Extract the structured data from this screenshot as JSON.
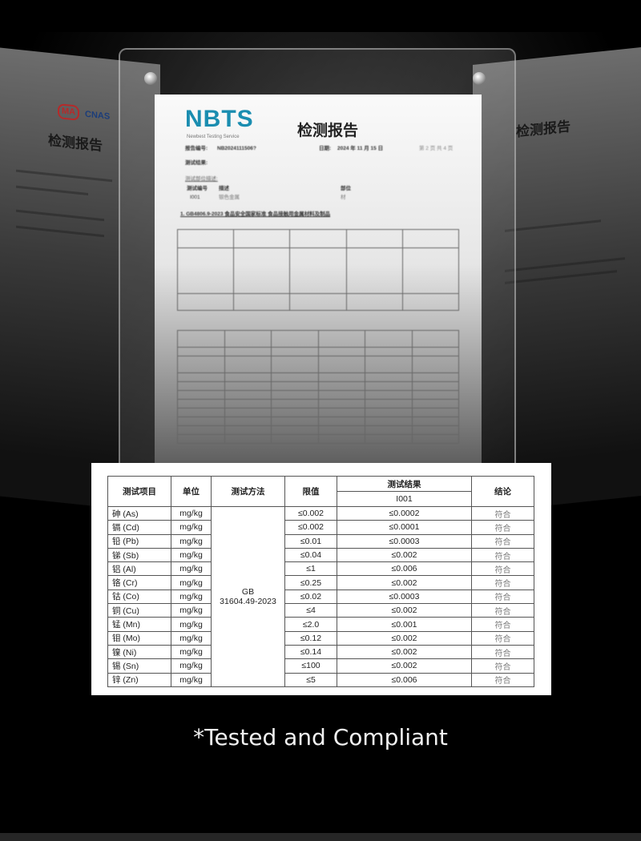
{
  "background_report": {
    "logo": "NBTS",
    "logo_tagline": "Newbest Testing Service",
    "title": "检测报告",
    "report_no_label": "报告编号:",
    "report_no": "NB2024111506?",
    "date_label": "日期:",
    "date": "2024 年 11 月 15 日",
    "page": "第 2 页 共 4 页",
    "results_label": "测试结果:",
    "sample_label": "测试部位描述:",
    "sample_headers": [
      "测试编号",
      "描述",
      "部位"
    ],
    "sample_row": [
      "I001",
      "银色金属",
      "材"
    ],
    "standard": "1. GB4806.9-2023 食品安全国家标准 食品接触用金属材料及制品",
    "side_badges": [
      "MA",
      "CNAS"
    ]
  },
  "results_table": {
    "headers": {
      "item": "测试项目",
      "unit": "单位",
      "method": "测试方法",
      "limit": "限值",
      "result": "测试结果",
      "sample_id": "I001",
      "conclusion": "结论"
    },
    "method": "GB\n31604.49-2023",
    "method_line1": "GB",
    "method_line2": "31604.49-2023",
    "rows": [
      {
        "item": "砷 (As)",
        "unit": "mg/kg",
        "limit": "≤0.002",
        "result": "≤0.0002",
        "conclusion": "符合"
      },
      {
        "item": "镉 (Cd)",
        "unit": "mg/kg",
        "limit": "≤0.002",
        "result": "≤0.0001",
        "conclusion": "符合"
      },
      {
        "item": "铅 (Pb)",
        "unit": "mg/kg",
        "limit": "≤0.01",
        "result": "≤0.0003",
        "conclusion": "符合"
      },
      {
        "item": "锑 (Sb)",
        "unit": "mg/kg",
        "limit": "≤0.04",
        "result": "≤0.002",
        "conclusion": "符合"
      },
      {
        "item": "铝 (Al)",
        "unit": "mg/kg",
        "limit": "≤1",
        "result": "≤0.006",
        "conclusion": "符合"
      },
      {
        "item": "铬 (Cr)",
        "unit": "mg/kg",
        "limit": "≤0.25",
        "result": "≤0.002",
        "conclusion": "符合"
      },
      {
        "item": "钴 (Co)",
        "unit": "mg/kg",
        "limit": "≤0.02",
        "result": "≤0.0003",
        "conclusion": "符合"
      },
      {
        "item": "铜 (Cu)",
        "unit": "mg/kg",
        "limit": "≤4",
        "result": "≤0.002",
        "conclusion": "符合"
      },
      {
        "item": "锰 (Mn)",
        "unit": "mg/kg",
        "limit": "≤2.0",
        "result": "≤0.001",
        "conclusion": "符合"
      },
      {
        "item": "钼 (Mo)",
        "unit": "mg/kg",
        "limit": "≤0.12",
        "result": "≤0.002",
        "conclusion": "符合"
      },
      {
        "item": "镍 (Ni)",
        "unit": "mg/kg",
        "limit": "≤0.14",
        "result": "≤0.002",
        "conclusion": "符合"
      },
      {
        "item": "锡 (Sn)",
        "unit": "mg/kg",
        "limit": "≤100",
        "result": "≤0.002",
        "conclusion": "符合"
      },
      {
        "item": "锌 (Zn)",
        "unit": "mg/kg",
        "limit": "≤5",
        "result": "≤0.006",
        "conclusion": "符合"
      }
    ]
  },
  "caption": "*Tested and Compliant",
  "colors": {
    "background": "#000000",
    "logo": "#1a8db0",
    "caption": "#f2f2f2"
  }
}
